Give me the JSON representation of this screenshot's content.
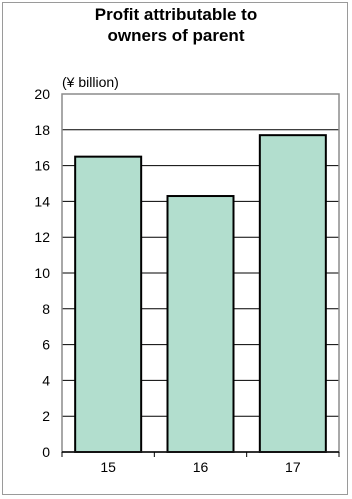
{
  "chart_data": {
    "type": "bar",
    "title_lines": [
      "Profit attributable to",
      "owners of parent"
    ],
    "ylabel": "(¥ billion)",
    "xlabel": "",
    "categories": [
      "15",
      "16",
      "17"
    ],
    "values": [
      16.5,
      14.3,
      17.7
    ],
    "ylim": [
      0,
      20
    ],
    "yticks": [
      "0",
      "2",
      "4",
      "6",
      "8",
      "10",
      "12",
      "14",
      "16",
      "18",
      "20"
    ],
    "grid": true,
    "legend": "none",
    "bar_color": "#b2dece",
    "bar_edge_color": "#000000"
  }
}
